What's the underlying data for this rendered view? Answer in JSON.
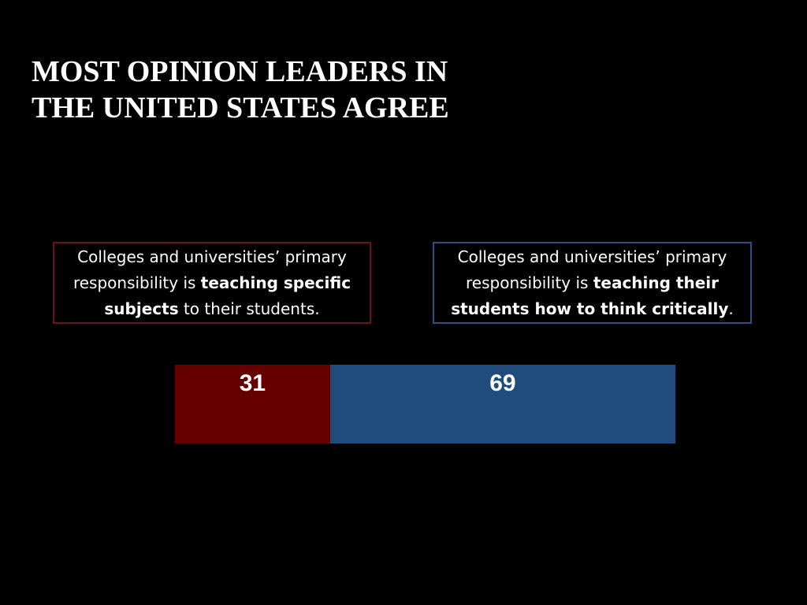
{
  "slide": {
    "title_line1": "MOST OPINION LEADERS IN",
    "title_line2": "THE UNITED STATES AGREE"
  },
  "legend": {
    "left": {
      "prefix": "Colleges and universities’ primary responsibility is ",
      "emphasis": "teaching specific subjects",
      "suffix": " to their students.",
      "color": "#6b1414"
    },
    "right": {
      "prefix": "Colleges and universities’ primary responsibility is ",
      "emphasis": "teaching their students how to think critically",
      "suffix": ".",
      "color": "#2f4f80"
    }
  },
  "chart_data": {
    "type": "bar",
    "orientation": "horizontal-stacked",
    "title": "MOST OPINION LEADERS IN THE UNITED STATES AGREE",
    "categories": [
      ""
    ],
    "series": [
      {
        "name": "Colleges and universities’ primary responsibility is teaching specific subjects to their students.",
        "values": [
          31
        ],
        "color": "#660000"
      },
      {
        "name": "Colleges and universities’ primary responsibility is teaching their students how to think critically.",
        "values": [
          69
        ],
        "color": "#1f4b7d"
      }
    ],
    "xlim": [
      0,
      100
    ],
    "xlabel": "",
    "ylabel": "",
    "grid": false,
    "legend_position": "top"
  }
}
